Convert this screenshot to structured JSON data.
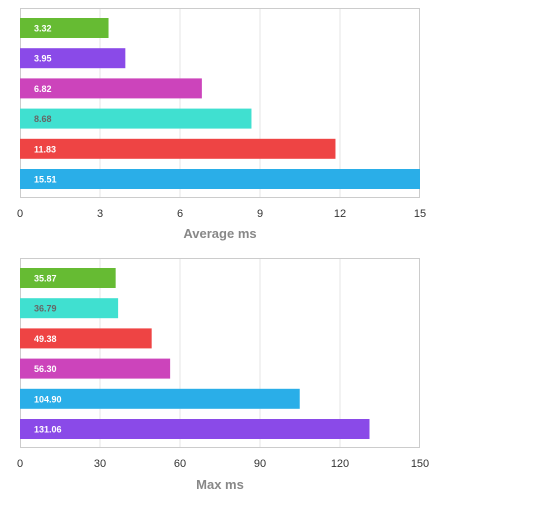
{
  "chart_data": [
    {
      "type": "bar",
      "orientation": "horizontal",
      "xlabel": "Average ms",
      "xlim": [
        0,
        15
      ],
      "xticks": [
        "0",
        "3",
        "6",
        "9",
        "12",
        "15"
      ],
      "grid": true,
      "bars": [
        {
          "label": "3.32",
          "value": 3.32,
          "color": "#66bb33",
          "label_color": "#ffffff"
        },
        {
          "label": "3.95",
          "value": 3.95,
          "color": "#8a4ae8",
          "label_color": "#ffffff"
        },
        {
          "label": "6.82",
          "value": 6.82,
          "color": "#cc44bb",
          "label_color": "#ffffff"
        },
        {
          "label": "8.68",
          "value": 8.68,
          "color": "#40e0d0",
          "label_color": "#666666"
        },
        {
          "label": "11.83",
          "value": 11.83,
          "color": "#ee4444",
          "label_color": "#ffffff"
        },
        {
          "label": "15.51",
          "value": 15.51,
          "color": "#2aaee8",
          "label_color": "#ffffff"
        }
      ]
    },
    {
      "type": "bar",
      "orientation": "horizontal",
      "xlabel": "Max ms",
      "xlim": [
        0,
        150
      ],
      "xticks": [
        "0",
        "30",
        "60",
        "90",
        "120",
        "150"
      ],
      "grid": true,
      "bars": [
        {
          "label": "35.87",
          "value": 35.87,
          "color": "#66bb33",
          "label_color": "#ffffff"
        },
        {
          "label": "36.79",
          "value": 36.79,
          "color": "#40e0d0",
          "label_color": "#666666"
        },
        {
          "label": "49.38",
          "value": 49.38,
          "color": "#ee4444",
          "label_color": "#ffffff"
        },
        {
          "label": "56.30",
          "value": 56.3,
          "color": "#cc44bb",
          "label_color": "#ffffff"
        },
        {
          "label": "104.90",
          "value": 104.9,
          "color": "#2aaee8",
          "label_color": "#ffffff"
        },
        {
          "label": "131.06",
          "value": 131.06,
          "color": "#8a4ae8",
          "label_color": "#ffffff"
        }
      ]
    }
  ]
}
